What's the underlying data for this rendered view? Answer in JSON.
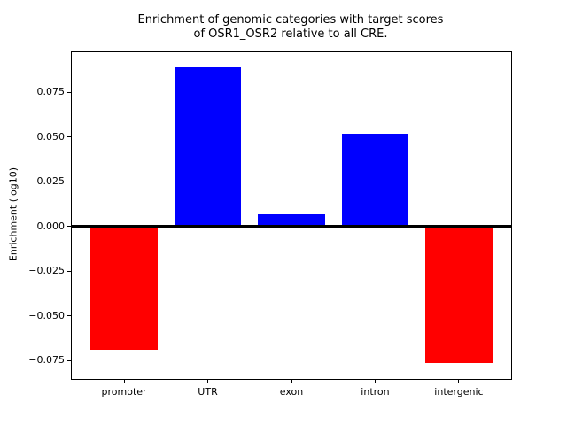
{
  "chart_data": {
    "type": "bar",
    "title": "Enrichment of genomic categories with target scores of OSR1_OSR2 relative to all CRE.",
    "title_lines": [
      "Enrichment of genomic categories with target scores",
      "of OSR1_OSR2 relative to all CRE."
    ],
    "xlabel": "",
    "ylabel": "Enrichment (log10)",
    "categories": [
      "promoter",
      "UTR",
      "exon",
      "intron",
      "intergenic"
    ],
    "values": [
      -0.069,
      0.089,
      0.007,
      0.052,
      -0.0765
    ],
    "bar_colors": [
      "#ff0000",
      "#0000ff",
      "#0000ff",
      "#0000ff",
      "#ff0000"
    ],
    "colors": {
      "positive_bar": "#0000ff",
      "negative_bar": "#ff0000",
      "zero_line": "#000000",
      "axes": "#000000"
    },
    "yticks": [
      0.075,
      0.05,
      0.025,
      0.0,
      -0.025,
      -0.05,
      -0.075
    ],
    "ytick_labels": [
      "0.075",
      "0.050",
      "0.025",
      "0.000",
      "−0.025",
      "−0.050",
      "−0.075"
    ],
    "ylim": [
      -0.0852,
      0.0973
    ],
    "xlim": [
      -0.625,
      4.625
    ],
    "bar_width": 0.8,
    "baseline": 0,
    "zero_line": true,
    "grid": false,
    "legend": null
  }
}
